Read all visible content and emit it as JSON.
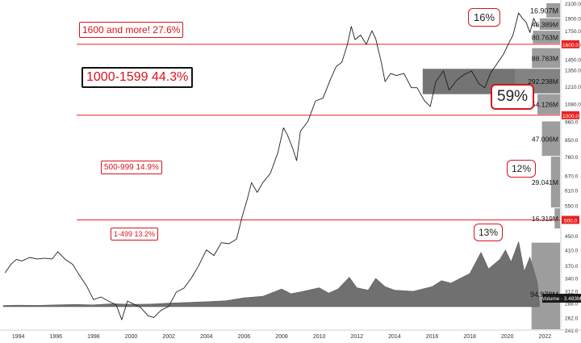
{
  "chart_data": {
    "type": "line",
    "colors": {
      "price": "#1f1f1f",
      "volume": "#707070",
      "profile": "#8c8c8c",
      "band_line": "#e8231f",
      "tag_red": "#e8231f",
      "tag_dark": "#1a1a1a"
    },
    "x_range": [
      1993.2,
      2022.8
    ],
    "x_ticks": [
      "1994",
      "1996",
      "1998",
      "2000",
      "2002",
      "2004",
      "2006",
      "2008",
      "2010",
      "2012",
      "2014",
      "2016",
      "2018",
      "2020",
      "2022"
    ],
    "y_range": [
      241.0,
      2100.0
    ],
    "y_scale": "log",
    "y_ticks": [
      "2100.0",
      "1900.0",
      "1750.0",
      "1600.0",
      "1450.0",
      "1350.0",
      "1210.0",
      "1080.0",
      "960.0",
      "850.0",
      "760.0",
      "670.0",
      "610.0",
      "550.0",
      "500.0",
      "450.0",
      "410.0",
      "370.0",
      "340.0",
      "312.0",
      "288.0",
      "262.0",
      "241.0"
    ],
    "y_tags": [
      {
        "value": 1600,
        "label": "1600.0",
        "style": "red"
      },
      {
        "value": 1000,
        "label": "1000.0",
        "style": "red"
      },
      {
        "value": 500,
        "label": "500.0",
        "style": "red"
      }
    ],
    "volume_tag": "Volume ∙ 3.483M",
    "price_series": [
      [
        1993.3,
        352
      ],
      [
        1993.6,
        372
      ],
      [
        1993.9,
        385
      ],
      [
        1994.2,
        381
      ],
      [
        1994.6,
        390
      ],
      [
        1995.0,
        386
      ],
      [
        1995.4,
        388
      ],
      [
        1995.8,
        386
      ],
      [
        1996.1,
        405
      ],
      [
        1996.5,
        385
      ],
      [
        1996.9,
        372
      ],
      [
        1997.2,
        350
      ],
      [
        1997.6,
        325
      ],
      [
        1998.0,
        295
      ],
      [
        1998.4,
        300
      ],
      [
        1998.8,
        292
      ],
      [
        1999.2,
        285
      ],
      [
        1999.5,
        258
      ],
      [
        1999.8,
        292
      ],
      [
        2000.1,
        287
      ],
      [
        2000.5,
        280
      ],
      [
        2000.9,
        265
      ],
      [
        2001.2,
        262
      ],
      [
        2001.6,
        275
      ],
      [
        2002.0,
        282
      ],
      [
        2002.4,
        310
      ],
      [
        2002.8,
        318
      ],
      [
        2003.2,
        340
      ],
      [
        2003.6,
        370
      ],
      [
        2004.0,
        410
      ],
      [
        2004.4,
        395
      ],
      [
        2004.8,
        430
      ],
      [
        2005.2,
        427
      ],
      [
        2005.6,
        440
      ],
      [
        2005.9,
        510
      ],
      [
        2006.2,
        580
      ],
      [
        2006.4,
        640
      ],
      [
        2006.7,
        600
      ],
      [
        2007.0,
        640
      ],
      [
        2007.4,
        680
      ],
      [
        2007.8,
        780
      ],
      [
        2008.1,
        920
      ],
      [
        2008.3,
        880
      ],
      [
        2008.6,
        800
      ],
      [
        2008.8,
        740
      ],
      [
        2009.0,
        900
      ],
      [
        2009.4,
        960
      ],
      [
        2009.8,
        1100
      ],
      [
        2010.2,
        1120
      ],
      [
        2010.6,
        1270
      ],
      [
        2010.9,
        1380
      ],
      [
        2011.2,
        1420
      ],
      [
        2011.5,
        1600
      ],
      [
        2011.7,
        1800
      ],
      [
        2011.9,
        1650
      ],
      [
        2012.2,
        1700
      ],
      [
        2012.5,
        1600
      ],
      [
        2012.8,
        1750
      ],
      [
        2013.0,
        1660
      ],
      [
        2013.3,
        1420
      ],
      [
        2013.5,
        1250
      ],
      [
        2013.8,
        1320
      ],
      [
        2014.1,
        1300
      ],
      [
        2014.5,
        1320
      ],
      [
        2014.9,
        1200
      ],
      [
        2015.2,
        1200
      ],
      [
        2015.6,
        1100
      ],
      [
        2015.9,
        1060
      ],
      [
        2016.2,
        1250
      ],
      [
        2016.6,
        1340
      ],
      [
        2016.9,
        1180
      ],
      [
        2017.3,
        1260
      ],
      [
        2017.7,
        1310
      ],
      [
        2018.1,
        1340
      ],
      [
        2018.5,
        1230
      ],
      [
        2018.8,
        1200
      ],
      [
        2019.1,
        1320
      ],
      [
        2019.5,
        1420
      ],
      [
        2019.8,
        1500
      ],
      [
        2020.0,
        1580
      ],
      [
        2020.3,
        1700
      ],
      [
        2020.6,
        1970
      ],
      [
        2020.8,
        1900
      ],
      [
        2021.0,
        1850
      ],
      [
        2021.2,
        1730
      ],
      [
        2021.4,
        1900
      ],
      [
        2021.6,
        1800
      ]
    ],
    "volume_series": [
      [
        1993.2,
        1.0
      ],
      [
        1994,
        1.3
      ],
      [
        1995,
        1.1
      ],
      [
        1996,
        1.6
      ],
      [
        1997,
        1.9
      ],
      [
        1998,
        1.6
      ],
      [
        1999,
        2.5
      ],
      [
        2000,
        2.0
      ],
      [
        2001,
        2.2
      ],
      [
        2002,
        3.0
      ],
      [
        2003,
        3.6
      ],
      [
        2004,
        4.2
      ],
      [
        2005,
        5.0
      ],
      [
        2006,
        7.5
      ],
      [
        2007,
        8.8
      ],
      [
        2008,
        15.0
      ],
      [
        2008.5,
        11.0
      ],
      [
        2009,
        12.5
      ],
      [
        2010,
        16.0
      ],
      [
        2010.5,
        11.5
      ],
      [
        2011,
        15.0
      ],
      [
        2011.6,
        25.0
      ],
      [
        2012,
        16.0
      ],
      [
        2012.6,
        14.0
      ],
      [
        2013,
        24.0
      ],
      [
        2013.5,
        17.0
      ],
      [
        2014,
        14.0
      ],
      [
        2015,
        13.0
      ],
      [
        2016,
        17.0
      ],
      [
        2016.5,
        22.0
      ],
      [
        2017,
        20.0
      ],
      [
        2018,
        28.0
      ],
      [
        2018.6,
        46.0
      ],
      [
        2019,
        32.0
      ],
      [
        2019.6,
        40.0
      ],
      [
        2019.9,
        48.0
      ],
      [
        2020.2,
        38.0
      ],
      [
        2020.6,
        55.0
      ],
      [
        2020.9,
        30.0
      ],
      [
        2021.2,
        42.0
      ],
      [
        2021.6,
        20.0
      ],
      [
        2021.7,
        2.0
      ]
    ],
    "volume_max": 60,
    "volume_label": "94.978M",
    "profile_bars": [
      {
        "label": "16.907M",
        "from": 1900,
        "to": 2100,
        "fraction": 0.3
      },
      {
        "label": "46.389M",
        "from": 1750,
        "to": 1900,
        "fraction": 0.45
      },
      {
        "label": "80.763M",
        "from": 1600,
        "to": 1750,
        "fraction": 0.6
      },
      {
        "label": "88.783M",
        "from": 1360,
        "to": 1560,
        "fraction": 0.62
      },
      {
        "label": "292.238M",
        "from": 1150,
        "to": 1360,
        "fraction": 1.0
      },
      {
        "label": "54.126M",
        "from": 1000,
        "to": 1150,
        "fraction": 0.5
      },
      {
        "label": "47.006M",
        "from": 760,
        "to": 960,
        "fraction": 0.4
      },
      {
        "label": "29.041M",
        "from": 540,
        "to": 760,
        "fraction": 0.2
      },
      {
        "label": "16.319M",
        "from": 470,
        "to": 540,
        "fraction": 0.12
      },
      {
        "label": "",
        "from": 241,
        "to": 430,
        "fraction": 0.63
      }
    ],
    "horizontal_lines": [
      1600,
      1000,
      500
    ],
    "band_labels": [
      {
        "text": "1600 and more!   27.6%",
        "size": "medium"
      },
      {
        "text": "1000-1599   44.3%",
        "size": "large"
      },
      {
        "text": "500-999   14.9%",
        "size": "small"
      },
      {
        "text": "1-499   13.2%",
        "size": "small"
      }
    ],
    "percent_boxes": [
      {
        "text": "16%",
        "size": "medium"
      },
      {
        "text": "59%",
        "size": "xlarge"
      },
      {
        "text": "12%",
        "size": "medium"
      },
      {
        "text": "13%",
        "size": "medium"
      }
    ]
  }
}
